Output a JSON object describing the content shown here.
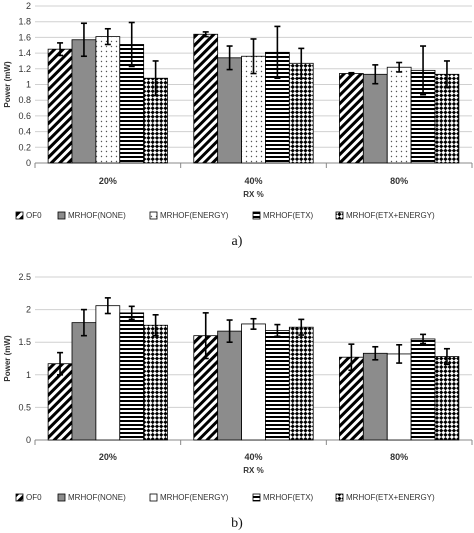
{
  "chart_data": [
    {
      "type": "bar",
      "caption": "a)",
      "categories": [
        "20%",
        "40%",
        "80%"
      ],
      "xlabel": "RX %",
      "ylabel": "Power (mW)",
      "ylim": [
        0,
        2
      ],
      "yticks": [
        0,
        0.2,
        0.4,
        0.6,
        0.8,
        1,
        1.2,
        1.4,
        1.6,
        1.8,
        2
      ],
      "grid": true,
      "legend_position": "bottom",
      "series": [
        {
          "name": "OF0",
          "pattern": "diag",
          "values": [
            1.45,
            1.64,
            1.14
          ],
          "errors": [
            0.08,
            0.03,
            0.01
          ]
        },
        {
          "name": "MRHOF(NONE)",
          "pattern": "gray",
          "values": [
            1.57,
            1.34,
            1.13
          ],
          "errors": [
            0.21,
            0.15,
            0.12
          ]
        },
        {
          "name": "MRHOF(ENERGY)",
          "pattern": "dots",
          "values": [
            1.61,
            1.36,
            1.22
          ],
          "errors": [
            0.1,
            0.22,
            0.06
          ]
        },
        {
          "name": "MRHOF(ETX)",
          "pattern": "hlines",
          "values": [
            1.51,
            1.41,
            1.18
          ],
          "errors": [
            0.28,
            0.33,
            0.31
          ]
        },
        {
          "name": "MRHOF(ETX+ENERGY)",
          "pattern": "checker",
          "values": [
            1.08,
            1.27,
            1.13
          ],
          "errors": [
            0.22,
            0.19,
            0.17
          ]
        }
      ]
    },
    {
      "type": "bar",
      "caption": "b)",
      "categories": [
        "20%",
        "40%",
        "80%"
      ],
      "xlabel": "RX %",
      "ylabel": "Power (mW)",
      "ylim": [
        0,
        2.5
      ],
      "yticks": [
        0,
        0.5,
        1,
        1.5,
        2,
        2.5
      ],
      "grid": true,
      "legend_position": "bottom",
      "series": [
        {
          "name": "OF0",
          "pattern": "diag",
          "values": [
            1.17,
            1.6,
            1.27
          ],
          "errors": [
            0.17,
            0.35,
            0.2
          ]
        },
        {
          "name": "MRHOF(NONE)",
          "pattern": "gray",
          "values": [
            1.8,
            1.67,
            1.33
          ],
          "errors": [
            0.2,
            0.17,
            0.1
          ]
        },
        {
          "name": "MRHOF(ENERGY)",
          "pattern": "white",
          "values": [
            2.06,
            1.78,
            1.32
          ],
          "errors": [
            0.12,
            0.08,
            0.14
          ]
        },
        {
          "name": "MRHOF(ETX)",
          "pattern": "hlines",
          "values": [
            1.95,
            1.68,
            1.55
          ],
          "errors": [
            0.1,
            0.09,
            0.07
          ]
        },
        {
          "name": "MRHOF(ETX+ENERGY)",
          "pattern": "checker",
          "values": [
            1.76,
            1.73,
            1.28
          ],
          "errors": [
            0.16,
            0.12,
            0.12
          ]
        }
      ]
    }
  ]
}
